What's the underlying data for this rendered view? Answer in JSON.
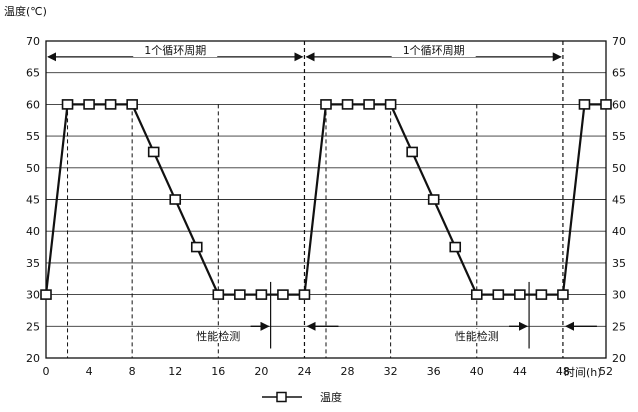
{
  "chart_data": {
    "type": "line",
    "ylabel": "温度(℃)",
    "xlabel": "时间(h)",
    "xlim": [
      0,
      52
    ],
    "ylim": [
      20,
      70
    ],
    "x_ticks": [
      "0",
      "4",
      "8",
      "12",
      "16",
      "20",
      "24",
      "28",
      "32",
      "36",
      "40",
      "44",
      "48",
      "52"
    ],
    "y_ticks": [
      "20",
      "25",
      "30",
      "35",
      "40",
      "45",
      "50",
      "55",
      "60",
      "65",
      "70"
    ],
    "grid": "horizontal",
    "legend": "bottom",
    "series": [
      {
        "name": "温度",
        "color": "#111111",
        "marker": "square",
        "line_x": [
          0,
          2,
          8,
          16,
          24,
          26,
          32,
          40,
          48,
          50,
          52
        ],
        "line_y": [
          30,
          60,
          60,
          30,
          30,
          60,
          60,
          30,
          30,
          60,
          60
        ],
        "marker_x": [
          0,
          2,
          4,
          6,
          8,
          10,
          12,
          14,
          16,
          18,
          20,
          22,
          24,
          26,
          28,
          30,
          32,
          34,
          36,
          38,
          40,
          42,
          44,
          46,
          48,
          50,
          52
        ],
        "marker_y": [
          30,
          60,
          60,
          60,
          60,
          52.5,
          45,
          37.5,
          30,
          30,
          30,
          30,
          30,
          60,
          60,
          60,
          60,
          52.5,
          45,
          37.5,
          30,
          30,
          30,
          30,
          30,
          60,
          60
        ]
      }
    ],
    "dashed_vlines_x": [
      2,
      8,
      16,
      24,
      26,
      32,
      40,
      48
    ],
    "cycle_lines_x": [
      24,
      48
    ],
    "annotations": {
      "cycles": [
        {
          "label": "1个循环周期",
          "x_from": 0,
          "x_to": 24,
          "y": 67.5
        },
        {
          "label": "1个循环周期",
          "x_from": 24,
          "x_to": 48,
          "y": 67.5
        }
      ],
      "tests": [
        {
          "label": "性能检测",
          "x_from": 8,
          "x_to": 24,
          "y": 23,
          "arrow_in_x": [
            19,
            24
          ],
          "arrow_in_y": 25
        },
        {
          "label": "性能检测",
          "x_from": 32,
          "x_to": 48,
          "y": 23,
          "arrow_in_x": [
            43,
            48
          ],
          "arrow_in_y": 25
        }
      ]
    }
  }
}
